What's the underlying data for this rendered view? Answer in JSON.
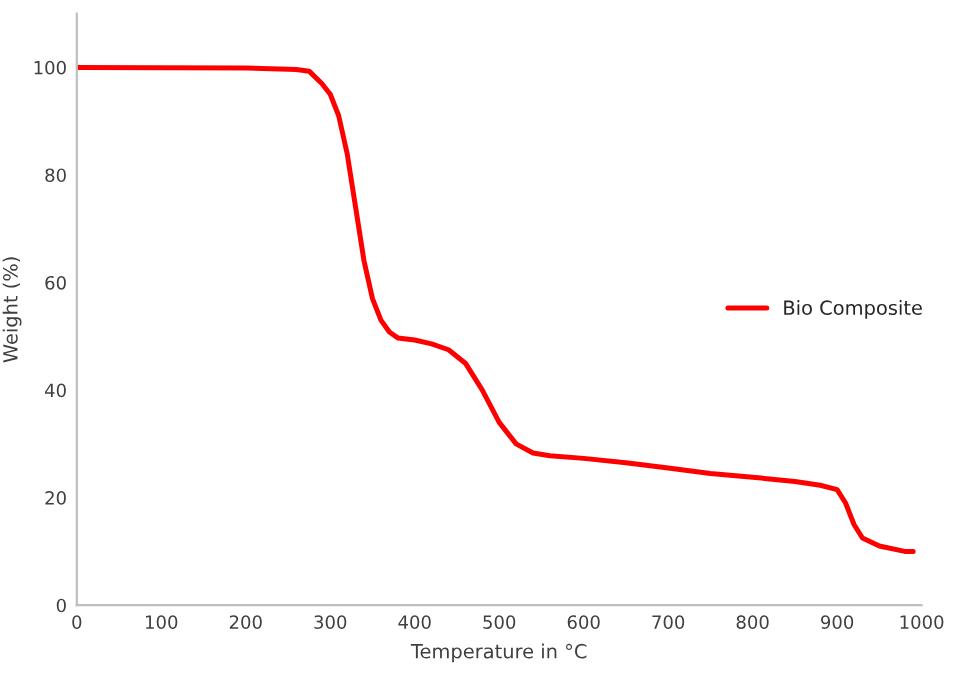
{
  "chart_data": {
    "type": "line",
    "xlabel": "Temperature in °C",
    "ylabel": "Weight (%)",
    "xlim": [
      0,
      1000
    ],
    "xticks": [
      0,
      100,
      200,
      300,
      400,
      500,
      600,
      700,
      800,
      900,
      1000
    ],
    "ylim": [
      0,
      110
    ],
    "yticks": [
      0,
      20,
      40,
      60,
      80,
      100
    ],
    "grid": false,
    "legend": "right",
    "series": [
      {
        "name": "Bio Composite",
        "color": "#ff0000",
        "x": [
          0,
          200,
          260,
          275,
          290,
          300,
          310,
          320,
          330,
          340,
          350,
          360,
          370,
          380,
          400,
          420,
          440,
          460,
          480,
          500,
          520,
          540,
          560,
          600,
          650,
          700,
          750,
          800,
          850,
          880,
          900,
          910,
          920,
          930,
          950,
          980,
          990
        ],
        "values": [
          100,
          99.9,
          99.6,
          99.3,
          97,
          95,
          91,
          84,
          74,
          64,
          57,
          53,
          50.8,
          49.7,
          49.3,
          48.6,
          47.5,
          45,
          40,
          34,
          30,
          28.3,
          27.8,
          27.3,
          26.5,
          25.5,
          24.5,
          23.8,
          23,
          22.3,
          21.5,
          19,
          15,
          12.5,
          11,
          10,
          10
        ]
      }
    ]
  }
}
